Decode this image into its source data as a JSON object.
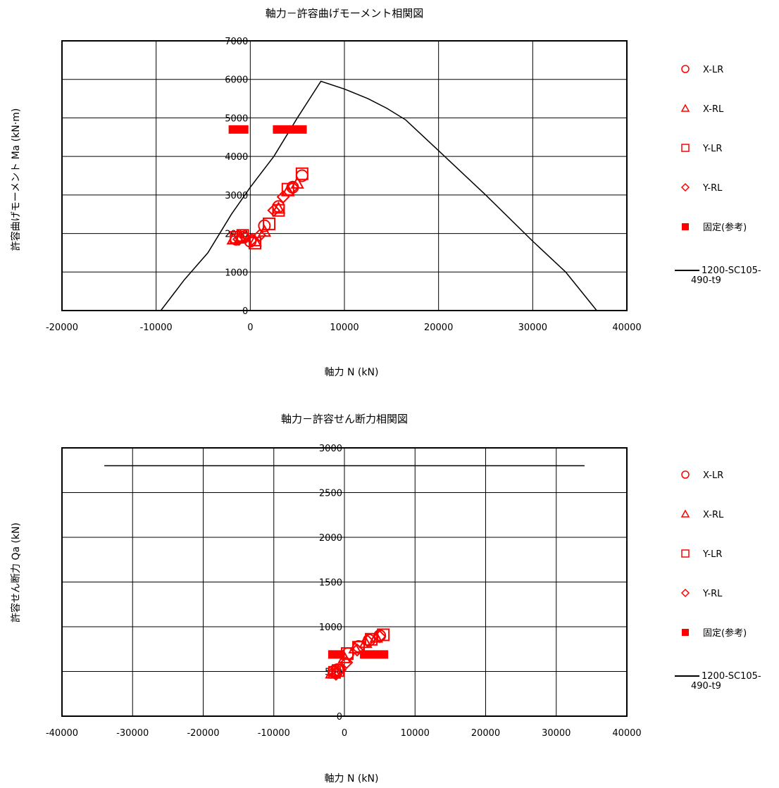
{
  "colors": {
    "marker": "#ff0000",
    "curve": "#000000",
    "grid": "#000000"
  },
  "chart_data": [
    {
      "type": "scatter",
      "title": "軸力－許容曲げモーメント相関図",
      "xlabel": "軸力 N (kN)",
      "ylabel": "許容曲げモーメント Ma (kN·m)",
      "xlim": [
        -20000,
        40000
      ],
      "ylim": [
        0,
        7000
      ],
      "xticks": [
        -20000,
        -10000,
        0,
        10000,
        20000,
        30000,
        40000
      ],
      "yticks": [
        0,
        1000,
        2000,
        3000,
        4000,
        5000,
        6000,
        7000
      ],
      "grid": true,
      "legend_position": "right",
      "legend": [
        {
          "label": "X-LR",
          "marker": "circle"
        },
        {
          "label": "X-RL",
          "marker": "triangle"
        },
        {
          "label": "Y-LR",
          "marker": "square"
        },
        {
          "label": "Y-RL",
          "marker": "diamond"
        },
        {
          "label": "固定(参考)",
          "marker": "filled-rect"
        },
        {
          "label": "1200-SC105-490-t9",
          "marker": "line"
        }
      ],
      "curve": {
        "name": "1200-SC105-490-t9",
        "x": [
          -9500,
          -7000,
          -4500,
          -2000,
          0,
          2500,
          5000,
          7500,
          10000,
          12500,
          14500,
          16500,
          20000,
          25000,
          30000,
          33500,
          36800
        ],
        "y": [
          0,
          800,
          1500,
          2500,
          3200,
          4000,
          5000,
          5950,
          5750,
          5500,
          5250,
          4950,
          4150,
          3000,
          1800,
          1000,
          0
        ]
      },
      "series": [
        {
          "name": "X-LR",
          "marker": "circle",
          "x": [
            -1500,
            -800,
            0,
            1500,
            3000,
            4500,
            5500
          ],
          "y": [
            1850,
            1900,
            1800,
            2200,
            2700,
            3200,
            3500
          ]
        },
        {
          "name": "X-RL",
          "marker": "triangle",
          "x": [
            -1800,
            -1000,
            500,
            1500,
            3000,
            4000,
            5000
          ],
          "y": [
            1850,
            1900,
            1800,
            2050,
            2650,
            3100,
            3300
          ]
        },
        {
          "name": "Y-LR",
          "marker": "square",
          "x": [
            -1500,
            -800,
            500,
            2000,
            3000,
            4000,
            5500
          ],
          "y": [
            1900,
            1950,
            1750,
            2250,
            2600,
            3150,
            3550
          ]
        },
        {
          "name": "Y-RL",
          "marker": "diamond",
          "x": [
            -1200,
            -500,
            200,
            1000,
            2500,
            3500,
            4500
          ],
          "y": [
            1850,
            1900,
            1850,
            1950,
            2600,
            2950,
            3200
          ]
        }
      ],
      "fixed_ref": [
        {
          "x0": -2300,
          "x1": -200,
          "y": 4700
        },
        {
          "x0": 2400,
          "x1": 6000,
          "y": 4700
        }
      ]
    },
    {
      "type": "scatter",
      "title": "軸力－許容せん断力相関図",
      "xlabel": "軸力 N (kN)",
      "ylabel": "許容せん断力 Qa (kN)",
      "xlim": [
        -40000,
        40000
      ],
      "ylim": [
        0,
        3000
      ],
      "xticks": [
        -40000,
        -30000,
        -20000,
        -10000,
        0,
        10000,
        20000,
        30000,
        40000
      ],
      "yticks": [
        0,
        500,
        1000,
        1500,
        2000,
        2500,
        3000
      ],
      "grid": true,
      "legend_position": "right",
      "legend": [
        {
          "label": "X-LR",
          "marker": "circle"
        },
        {
          "label": "X-RL",
          "marker": "triangle"
        },
        {
          "label": "Y-LR",
          "marker": "square"
        },
        {
          "label": "Y-RL",
          "marker": "diamond"
        },
        {
          "label": "固定(参考)",
          "marker": "filled-rect"
        },
        {
          "label": "1200-SC105-490-t9",
          "marker": "line"
        }
      ],
      "curve": {
        "name": "1200-SC105-490-t9",
        "x": [
          -34000,
          34000
        ],
        "y": [
          2800,
          2800
        ]
      },
      "series": [
        {
          "name": "X-LR",
          "marker": "circle",
          "x": [
            -1500,
            -1000,
            500,
            2000,
            3500,
            5000
          ],
          "y": [
            500,
            520,
            700,
            780,
            850,
            900
          ]
        },
        {
          "name": "X-RL",
          "marker": "triangle",
          "x": [
            -1800,
            -1200,
            0,
            1500,
            3000,
            4500
          ],
          "y": [
            480,
            500,
            650,
            760,
            820,
            880
          ]
        },
        {
          "name": "Y-LR",
          "marker": "square",
          "x": [
            -1400,
            -900,
            400,
            2000,
            3800,
            5500
          ],
          "y": [
            490,
            510,
            700,
            770,
            860,
            910
          ]
        },
        {
          "name": "Y-RL",
          "marker": "diamond",
          "x": [
            -1200,
            -600,
            300,
            1800,
            3300,
            5000
          ],
          "y": [
            470,
            520,
            600,
            740,
            840,
            890
          ]
        }
      ],
      "fixed_ref": [
        {
          "x0": -2300,
          "x1": 0,
          "y": 690
        },
        {
          "x0": 2200,
          "x1": 6200,
          "y": 690
        }
      ]
    }
  ]
}
